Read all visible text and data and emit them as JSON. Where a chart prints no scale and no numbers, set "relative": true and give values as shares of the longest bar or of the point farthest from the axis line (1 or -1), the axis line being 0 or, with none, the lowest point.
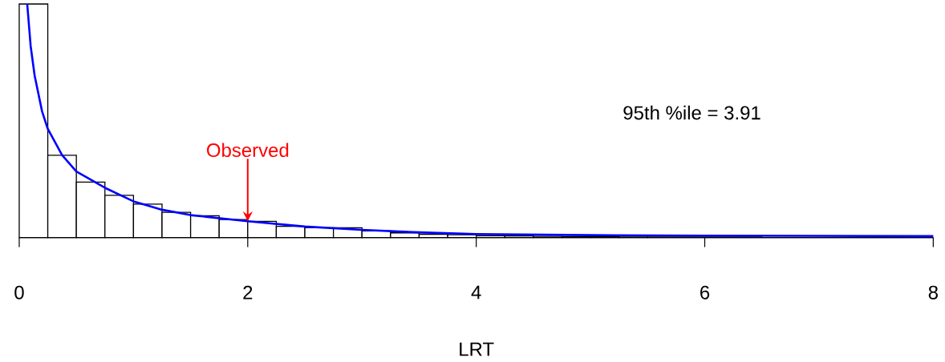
{
  "chart_data": {
    "type": "histogram",
    "relative": true,
    "xlabel": "LRT",
    "xlim": [
      0,
      8
    ],
    "xticks": [
      0,
      2,
      4,
      6,
      8
    ],
    "bins": [
      0,
      0.25,
      0.5,
      0.75,
      1,
      1.25,
      1.5,
      1.75,
      2,
      2.25,
      2.5,
      2.75,
      3,
      3.25,
      3.5,
      3.75,
      4,
      4.25,
      4.5,
      4.75,
      5,
      5.25,
      5.5,
      5.75,
      6,
      6.25,
      6.5,
      6.75,
      7,
      7.25,
      7.5,
      7.75,
      8
    ],
    "series": [
      {
        "type": "histogram",
        "color": "#000000",
        "values": [
          1,
          0.352,
          0.237,
          0.181,
          0.143,
          0.108,
          0.093,
          0.077,
          0.069,
          0.048,
          0.042,
          0.042,
          0.028,
          0.02,
          0.014,
          0.012,
          0.008,
          0.007,
          0.005,
          0.004,
          0.003,
          0.002,
          0.002,
          null,
          null,
          null,
          0,
          0,
          0,
          0,
          0,
          0
        ]
      },
      {
        "type": "line",
        "color": "#0000ff",
        "x": [
          0.07,
          0.1,
          0.135,
          0.2,
          0.25,
          0.375,
          0.5,
          0.75,
          1,
          1.25,
          1.5,
          2,
          2.5,
          3,
          3.5,
          4,
          5,
          6,
          7,
          8
        ],
        "values": [
          1,
          0.82,
          0.693,
          0.54,
          0.465,
          0.353,
          0.283,
          0.213,
          0.155,
          0.119,
          0.096,
          0.07,
          0.047,
          0.033,
          0.022,
          0.015,
          0.01,
          0.008,
          0.007,
          0.006
        ]
      }
    ],
    "annotations": [
      {
        "text": "Observed",
        "x": 2,
        "y": 0.07
      },
      "95th %ile = 3.91"
    ]
  }
}
